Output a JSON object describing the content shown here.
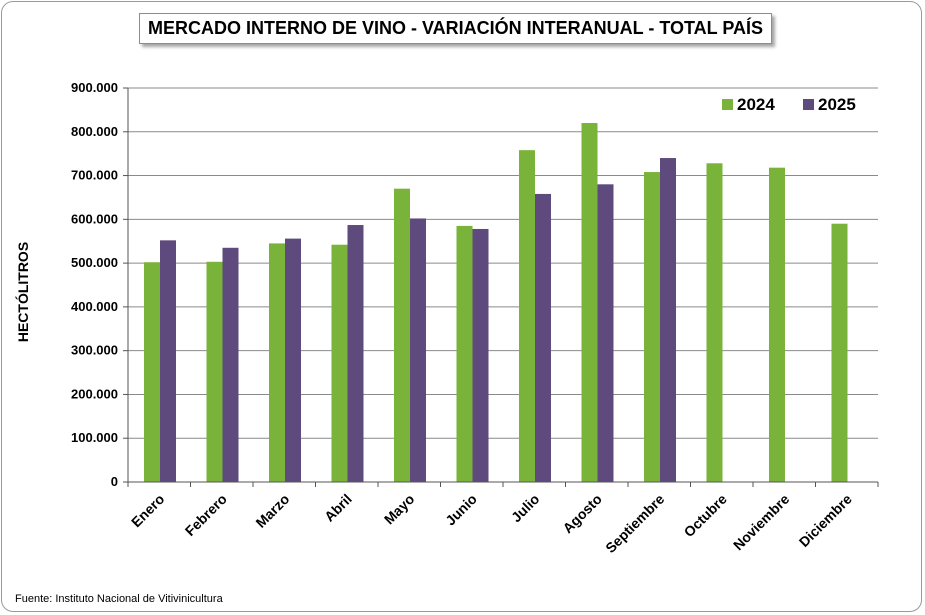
{
  "source_note": "Fuente: Instituto Nacional de Vitivinicultura",
  "colors": {
    "series_2024": "#7ab33a",
    "series_2025": "#5f4a7d",
    "grid": "#8a8a8a"
  },
  "chart_data": {
    "type": "bar",
    "title": "MERCADO INTERNO DE VINO - VARIACIÓN INTERANUAL - TOTAL PAÍS",
    "xlabel": "",
    "ylabel": "HECTÓLITROS",
    "ylim": [
      0,
      900000
    ],
    "y_ticks": [
      0,
      100000,
      200000,
      300000,
      400000,
      500000,
      600000,
      700000,
      800000,
      900000
    ],
    "y_tick_labels": [
      "0",
      "100.000",
      "200.000",
      "300.000",
      "400.000",
      "500.000",
      "600.000",
      "700.000",
      "800.000",
      "900.000"
    ],
    "grid": true,
    "legend_position": "top-right",
    "categories": [
      "Enero",
      "Febrero",
      "Marzo",
      "Abril",
      "Mayo",
      "Junio",
      "Julio",
      "Agosto",
      "Septiembre",
      "Octubre",
      "Noviembre",
      "Diciembre"
    ],
    "series": [
      {
        "name": "2024",
        "values": [
          502000,
          503000,
          545000,
          542000,
          670000,
          585000,
          758000,
          820000,
          708000,
          728000,
          718000,
          590000
        ]
      },
      {
        "name": "2025",
        "values": [
          552000,
          535000,
          556000,
          587000,
          602000,
          578000,
          658000,
          680000,
          740000,
          null,
          null,
          null
        ]
      }
    ]
  }
}
